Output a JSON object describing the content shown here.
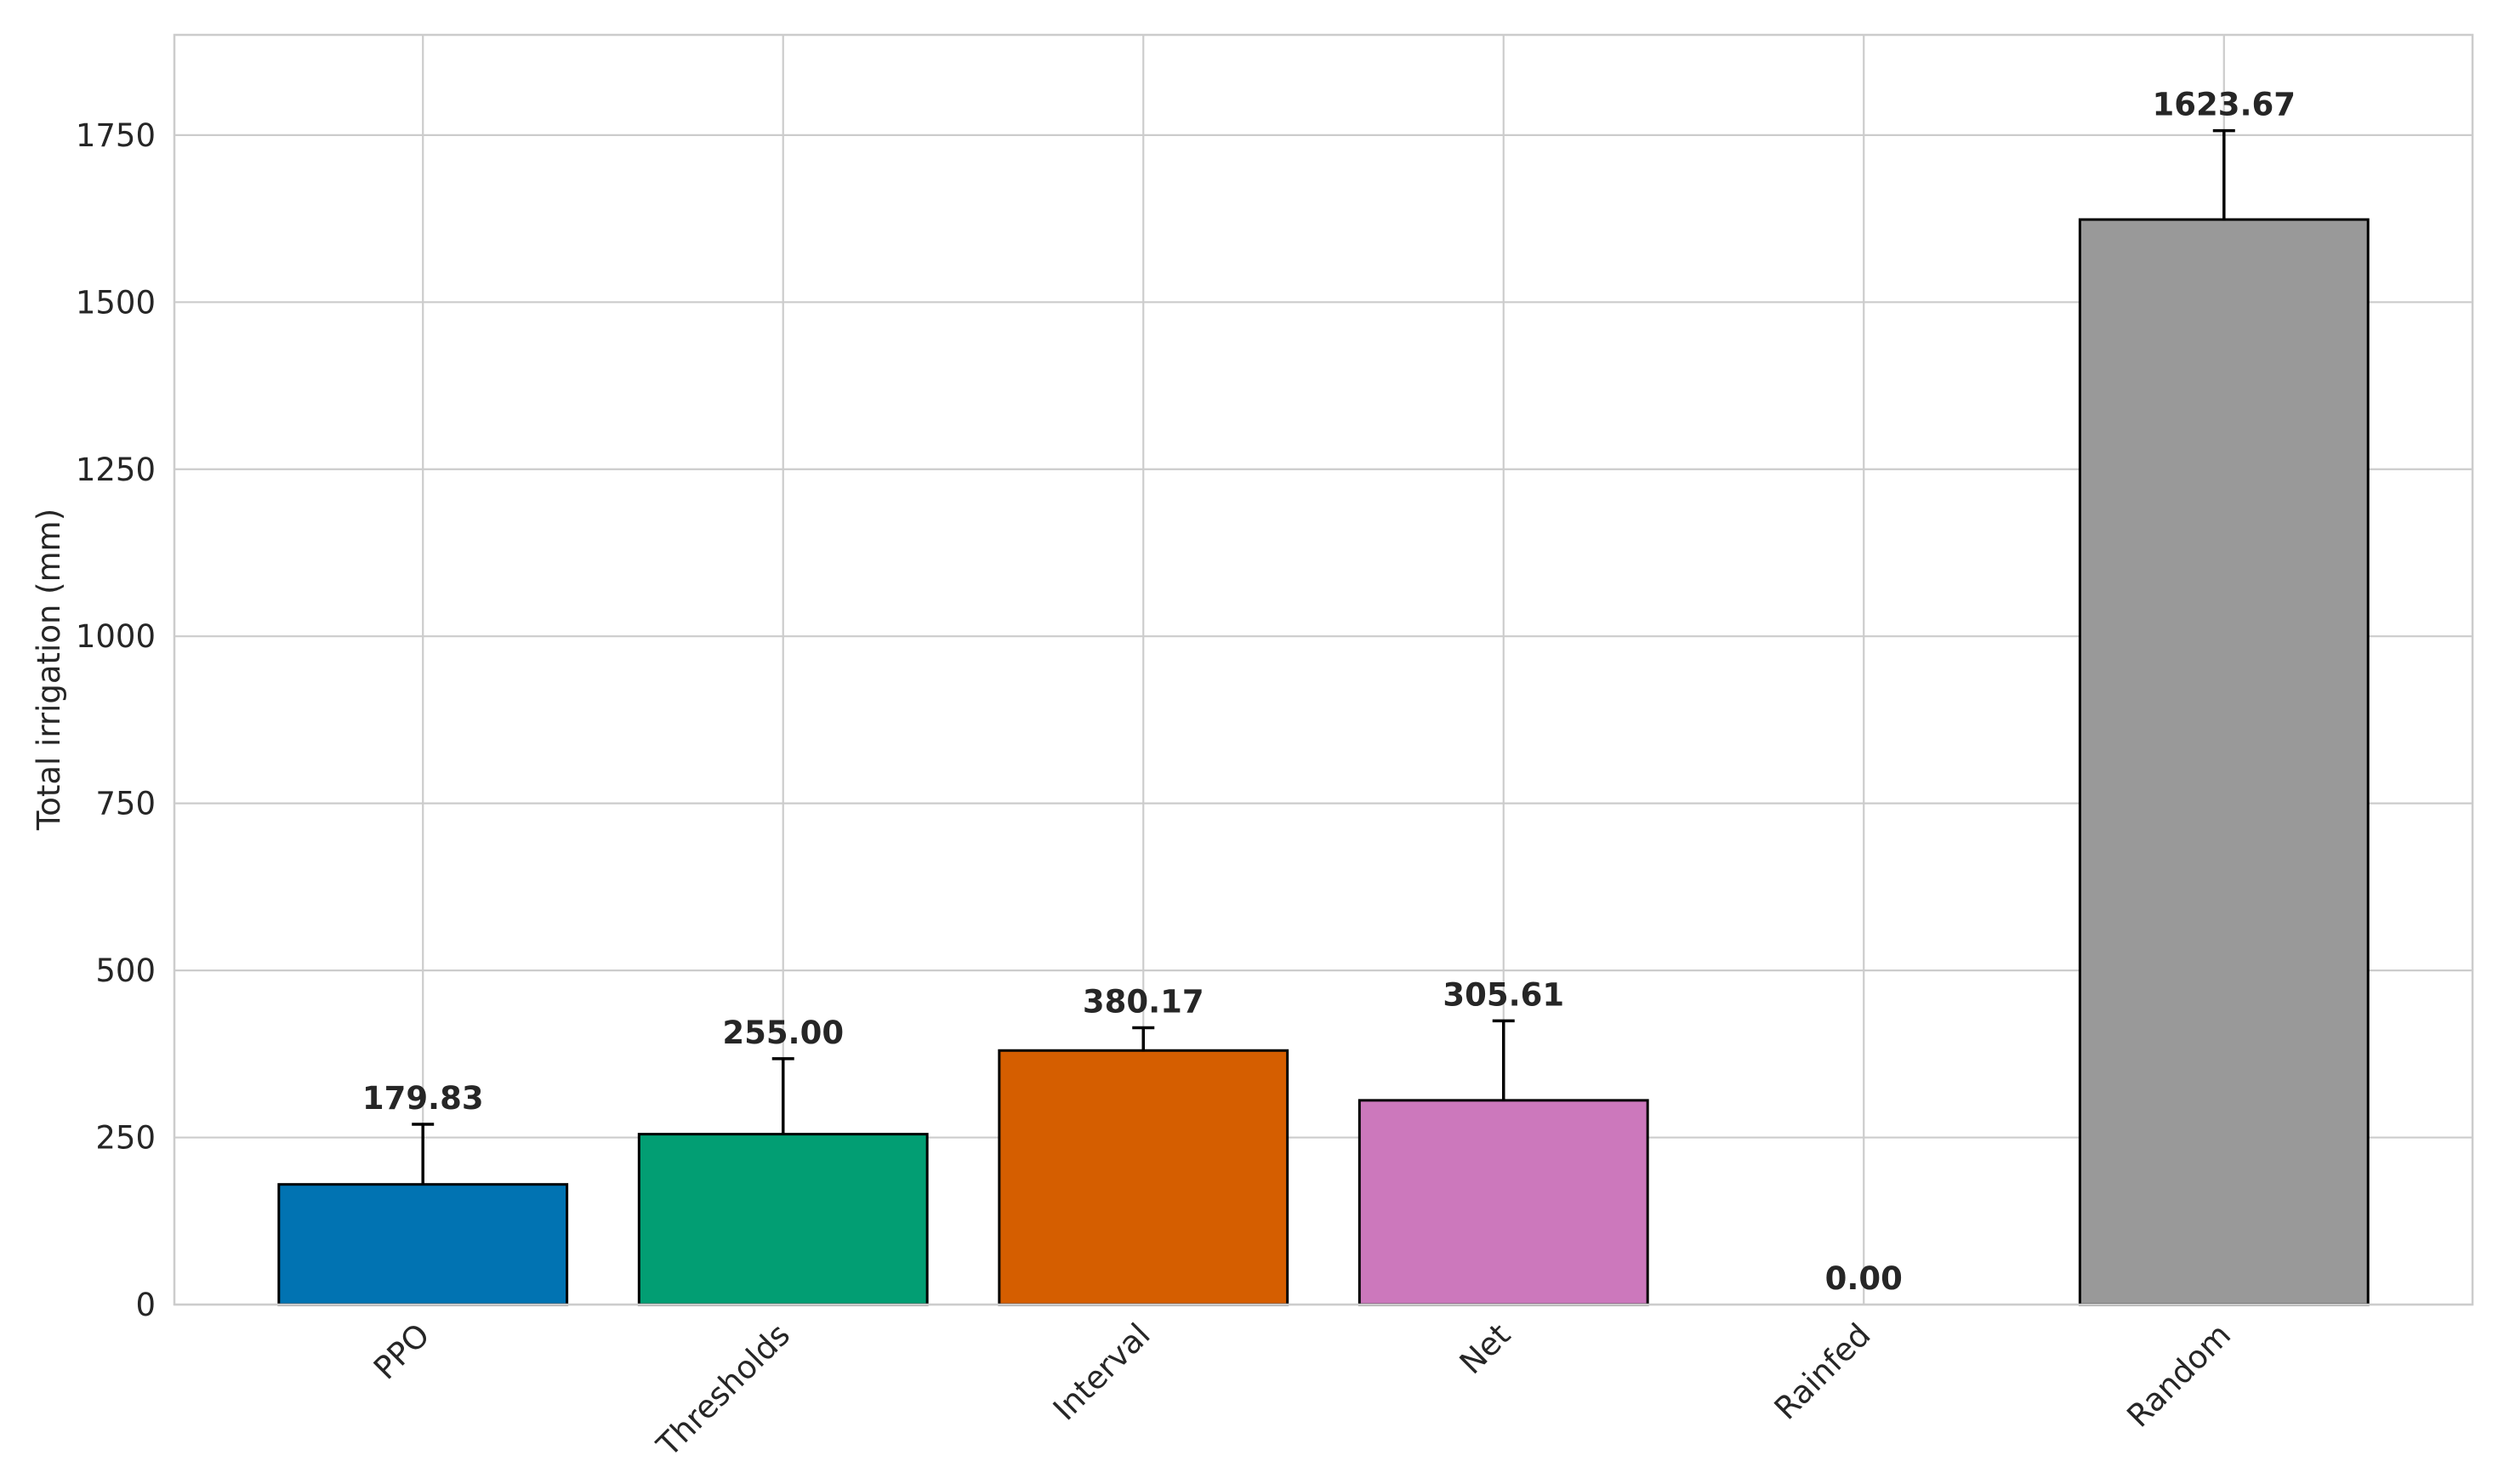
{
  "chart_data": {
    "type": "bar",
    "title": "",
    "xlabel": "",
    "ylabel": "Total irrigation (mm)",
    "categories": [
      "PPO",
      "Thresholds",
      "Interval",
      "Net",
      "Rainfed",
      "Random"
    ],
    "values": [
      179.83,
      255.0,
      380.17,
      305.61,
      0.0,
      1623.67
    ],
    "value_labels": [
      "179.83",
      "255.00",
      "380.17",
      "305.61",
      "0.00",
      "1623.67"
    ],
    "error_bars": [
      90,
      113,
      34,
      119,
      0,
      133
    ],
    "colors": [
      "#0173b2",
      "#029e73",
      "#d55e00",
      "#cc78bc",
      "#ca9161",
      "#999999"
    ],
    "ylim": [
      0,
      1900
    ],
    "yticks": [
      0,
      250,
      500,
      750,
      1000,
      1250,
      1500,
      1750
    ],
    "ytick_labels": [
      "0",
      "250",
      "500",
      "750",
      "1000",
      "1250",
      "1500",
      "1750"
    ],
    "xtick_rotation": 45,
    "grid": true,
    "legend": null
  }
}
